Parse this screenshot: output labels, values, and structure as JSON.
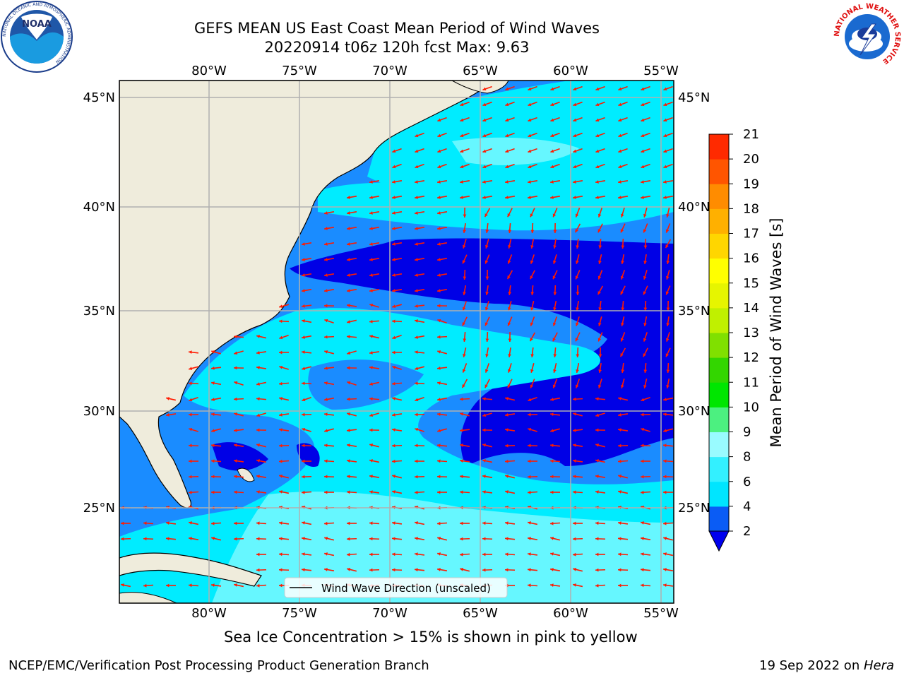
{
  "title": {
    "line1": "GEFS MEAN US East Coast Mean Period of Wind Waves",
    "line2": "20220914 t06z 120h fcst   Max: 9.63"
  },
  "map": {
    "lon_labels": [
      "80°W",
      "75°W",
      "70°W",
      "65°W",
      "60°W",
      "55°W"
    ],
    "lat_labels": [
      "45°N",
      "40°N",
      "35°N",
      "30°N",
      "25°N"
    ],
    "legend_label": "Wind Wave Direction (unscaled)",
    "arrow_color": "#ff1a00",
    "land_color": "#efecdc"
  },
  "colorbar": {
    "label": "Mean Period of Wind Waves [s]",
    "ticks": [
      "2",
      "4",
      "6",
      "8",
      "9",
      "10",
      "11",
      "12",
      "13",
      "14",
      "15",
      "16",
      "17",
      "18",
      "19",
      "20",
      "21"
    ],
    "colors": [
      "#0a5cf5",
      "#00e5ff",
      "#33f0ff",
      "#99fbff",
      "#4cf080",
      "#00e600",
      "#33d600",
      "#80e000",
      "#c0f000",
      "#e6f500",
      "#ffff00",
      "#ffd600",
      "#ffb000",
      "#ff8c00",
      "#ff5500",
      "#ff2a00",
      "#ff0000"
    ],
    "extend_color": "#0000ee"
  },
  "notes": {
    "sea_ice": "Sea Ice Concentration > 15% is shown in pink to yellow",
    "left": "NCEP/EMC/Verification Post Processing Product Generation Branch",
    "right_date": "19 Sep 2022 on ",
    "right_machine": "Hera"
  },
  "logos": {
    "noaa_text": "NOAA",
    "noaa_ring": "NATIONAL OCEANIC AND ATMOSPHERIC ADMINISTRATION",
    "noaa_ring_bottom": "U.S. DEPARTMENT OF COMMERCE",
    "nws_ring": "NATIONAL WEATHER SERVICE"
  }
}
